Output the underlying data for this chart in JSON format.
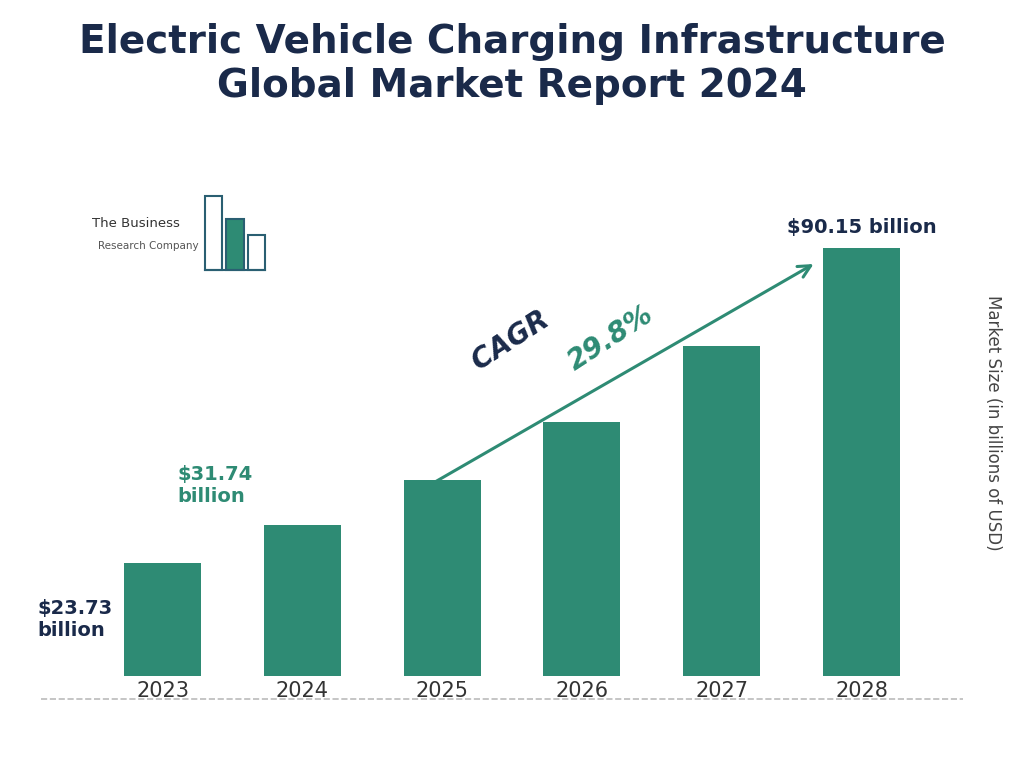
{
  "title": "Electric Vehicle Charging Infrastructure\nGlobal Market Report 2024",
  "title_color": "#1a2a4a",
  "title_fontsize": 28,
  "categories": [
    "2023",
    "2024",
    "2025",
    "2026",
    "2027",
    "2028"
  ],
  "values": [
    23.73,
    31.74,
    41.2,
    53.5,
    69.5,
    90.15
  ],
  "bar_color": "#2e8b74",
  "ylabel": "Market Size (in billions of USD)",
  "ylabel_color": "#444444",
  "label_2023": "$23.73\nbillion",
  "label_2024": "$31.74\nbillion",
  "label_2028": "$90.15 billion",
  "label_color_2023": "#1a2a4a",
  "label_color_2024": "#2e8b74",
  "label_color_2028": "#1a2a4a",
  "cagr_word": "CAGR ",
  "cagr_pct": "29.8%",
  "cagr_word_color": "#1a2a4a",
  "cagr_pct_color": "#2e8b74",
  "background_color": "#ffffff",
  "arrow_color": "#2e8b74",
  "bottom_line_color": "#bbbbbb",
  "bar_width": 0.55,
  "ylim": [
    0,
    115
  ]
}
